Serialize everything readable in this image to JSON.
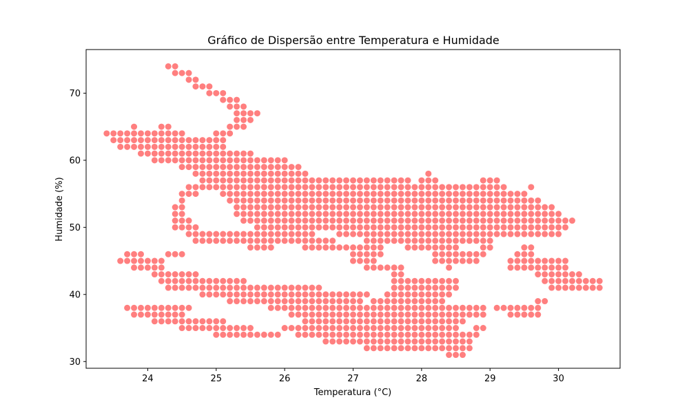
{
  "chart_data": {
    "type": "scatter",
    "title": "Gráfico de Dispersão entre Temperatura e Humidade",
    "xlabel": "Temperatura (°C)",
    "ylabel": "Humidade (%)",
    "xlim": [
      23.1,
      30.9
    ],
    "ylim": [
      29,
      76.5
    ],
    "xticks": [
      24,
      25,
      26,
      27,
      28,
      29,
      30
    ],
    "yticks": [
      30,
      40,
      50,
      60,
      70
    ],
    "grid": false,
    "marker_color": "#ff0000",
    "marker_alpha": 0.5,
    "point_step": 0.1,
    "series": [
      {
        "runs": [
          [
            74,
            24.3,
            24.4
          ],
          [
            73,
            24.4,
            24.6
          ],
          [
            72,
            24.6,
            24.7
          ],
          [
            71,
            24.7,
            24.9
          ],
          [
            70,
            24.9,
            25.1
          ],
          [
            69,
            25.1,
            25.3
          ],
          [
            68,
            25.2,
            25.4
          ],
          [
            67,
            25.3,
            25.6
          ],
          [
            66,
            25.3,
            25.5
          ],
          [
            65,
            23.8,
            23.8
          ],
          [
            65,
            24.2,
            24.3
          ],
          [
            65,
            25.2,
            25.4
          ],
          [
            64,
            23.4,
            24.5
          ],
          [
            64,
            25.0,
            25.2
          ],
          [
            63,
            23.5,
            25.1
          ],
          [
            62,
            23.6,
            25.1
          ],
          [
            61,
            23.9,
            25.5
          ],
          [
            60,
            24.1,
            25.9
          ],
          [
            60,
            26.0,
            26.0
          ],
          [
            59,
            24.5,
            26.2
          ],
          [
            58,
            24.7,
            26.3
          ],
          [
            58,
            28.1,
            28.1
          ],
          [
            57,
            24.8,
            27.8
          ],
          [
            57,
            28.0,
            28.2
          ],
          [
            57,
            28.9,
            29.1
          ],
          [
            56,
            24.6,
            29.2
          ],
          [
            56,
            29.6,
            29.6
          ],
          [
            55,
            24.5,
            24.7
          ],
          [
            55,
            25.1,
            29.5
          ],
          [
            54,
            24.5,
            24.5
          ],
          [
            54,
            25.2,
            29.7
          ],
          [
            53,
            24.4,
            24.5
          ],
          [
            53,
            25.3,
            29.9
          ],
          [
            52,
            24.4,
            24.5
          ],
          [
            52,
            25.3,
            30.0
          ],
          [
            51,
            24.4,
            24.6
          ],
          [
            51,
            25.4,
            30.2
          ],
          [
            50,
            24.4,
            24.7
          ],
          [
            50,
            25.6,
            30.1
          ],
          [
            49,
            24.6,
            26.4
          ],
          [
            49,
            26.8,
            30.0
          ],
          [
            48,
            24.7,
            26.7
          ],
          [
            48,
            27.2,
            29.0
          ],
          [
            47,
            25.5,
            25.8
          ],
          [
            47,
            26.3,
            27.4
          ],
          [
            47,
            27.8,
            28.5
          ],
          [
            47,
            28.9,
            29.0
          ],
          [
            47,
            29.5,
            29.6
          ],
          [
            46,
            23.7,
            23.9
          ],
          [
            46,
            24.3,
            24.5
          ],
          [
            46,
            27.0,
            27.4
          ],
          [
            46,
            28.2,
            28.9
          ],
          [
            46,
            29.4,
            29.6
          ],
          [
            45,
            23.6,
            24.2
          ],
          [
            45,
            27.0,
            27.3
          ],
          [
            45,
            28.2,
            28.8
          ],
          [
            45,
            29.3,
            30.1
          ],
          [
            44,
            23.8,
            24.2
          ],
          [
            44,
            27.2,
            27.7
          ],
          [
            44,
            28.4,
            28.4
          ],
          [
            44,
            29.3,
            30.1
          ],
          [
            43,
            24.1,
            24.7
          ],
          [
            43,
            27.6,
            27.7
          ],
          [
            43,
            29.7,
            30.3
          ],
          [
            42,
            24.2,
            25.4
          ],
          [
            42,
            27.6,
            28.5
          ],
          [
            42,
            29.8,
            30.6
          ],
          [
            41,
            24.3,
            26.0
          ],
          [
            41,
            26.1,
            26.5
          ],
          [
            41,
            27.6,
            28.5
          ],
          [
            41,
            29.9,
            30.6
          ],
          [
            40,
            24.8,
            27.2
          ],
          [
            40,
            27.5,
            28.4
          ],
          [
            39,
            25.2,
            27.1
          ],
          [
            39,
            27.3,
            28.3
          ],
          [
            39,
            29.7,
            29.8
          ],
          [
            38,
            23.7,
            24.6
          ],
          [
            38,
            25.8,
            28.9
          ],
          [
            38,
            29.1,
            29.7
          ],
          [
            37,
            23.8,
            24.5
          ],
          [
            37,
            26.1,
            28.9
          ],
          [
            37,
            29.3,
            29.7
          ],
          [
            36,
            24.1,
            25.1
          ],
          [
            36,
            26.3,
            28.6
          ],
          [
            35,
            24.5,
            25.5
          ],
          [
            35,
            26.0,
            28.5
          ],
          [
            35,
            28.8,
            28.9
          ],
          [
            34,
            25.0,
            25.9
          ],
          [
            34,
            26.2,
            28.8
          ],
          [
            33,
            26.6,
            28.7
          ],
          [
            32,
            27.2,
            28.7
          ],
          [
            31,
            28.4,
            28.6
          ]
        ]
      }
    ]
  }
}
